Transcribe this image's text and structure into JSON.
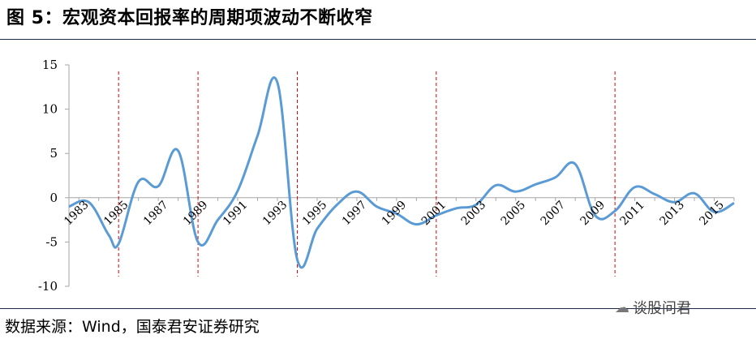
{
  "title": "图 5：宏观资本回报率的周期项波动不断收窄",
  "source": "数据来源：Wind，国泰君安证券研究",
  "watermark": "谈股问君",
  "watermark_icon": "wechat-icon",
  "colors": {
    "line": "#5b9bd5",
    "markers": "#e00000",
    "axis": "#a6a6a6"
  },
  "chart_data": {
    "type": "line",
    "title": "",
    "xlabel": "",
    "ylabel": "",
    "ylim": [
      -10,
      15
    ],
    "yticks": [
      -10,
      -5,
      0,
      5,
      10,
      15
    ],
    "x": [
      1982.5,
      1983.5,
      1984.5,
      1985,
      1986,
      1987,
      1988,
      1989,
      1990,
      1991,
      1992,
      1993,
      1994,
      1995,
      1996,
      1997,
      1998,
      1999,
      2000,
      2001,
      2002,
      2003,
      2004,
      2005,
      2006,
      2007,
      2008,
      2009,
      2010,
      2011,
      2012,
      2013,
      2014,
      2015,
      2016
    ],
    "y": [
      -1.0,
      -0.5,
      -4.2,
      -5.2,
      1.8,
      1.3,
      5.3,
      -5.0,
      -2.5,
      0.8,
      7.0,
      13.0,
      -7.0,
      -3.5,
      -0.8,
      0.7,
      -1.0,
      -1.8,
      -3.0,
      -2.0,
      -1.2,
      -0.8,
      1.4,
      0.7,
      1.5,
      2.3,
      3.8,
      -2.0,
      -1.5,
      1.2,
      0.4,
      -0.5,
      0.5,
      -1.6,
      -0.6
    ],
    "xtick_labels": [
      "1983",
      "1985",
      "1987",
      "1989",
      "1991",
      "1993",
      "1995",
      "1997",
      "1999",
      "2001",
      "2003",
      "2005",
      "2007",
      "2009",
      "2011",
      "2013",
      "2015"
    ],
    "xtick_values": [
      1983,
      1985,
      1987,
      1989,
      1991,
      1993,
      1995,
      1997,
      1999,
      2001,
      2003,
      2005,
      2007,
      2009,
      2011,
      2013,
      2015
    ],
    "xlim": [
      1982.5,
      2016
    ],
    "vertical_markers": [
      1985,
      1989,
      1994,
      2001,
      2010
    ],
    "grid": false
  }
}
